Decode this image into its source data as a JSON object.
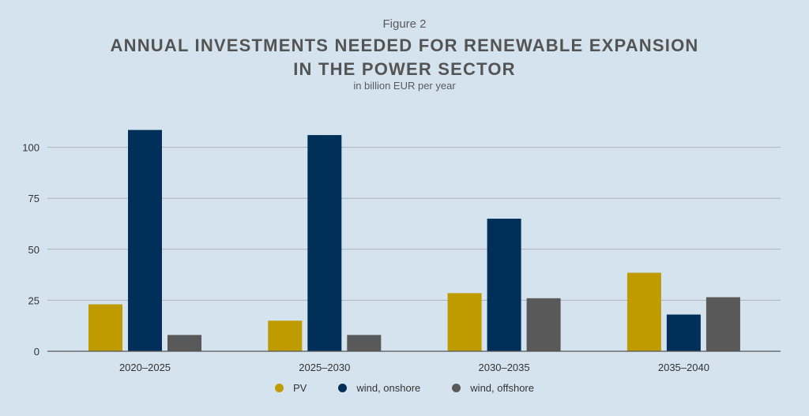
{
  "figure_label": "Figure 2",
  "title_line1": "ANNUAL INVESTMENTS NEEDED FOR RENEWABLE EXPANSION",
  "title_line2": "IN THE POWER SECTOR",
  "subtitle": "in billion EUR per year",
  "colors": {
    "PV": "#bf9b00",
    "wind, onshore": "#00305a",
    "wind, offshore": "#595959",
    "grid": "#a9b3bb",
    "axis": "#555555"
  },
  "chart_data": {
    "type": "bar",
    "title": "ANNUAL INVESTMENTS NEEDED FOR RENEWABLE EXPANSION IN THE POWER SECTOR",
    "subtitle": "in billion EUR per year",
    "xlabel": "",
    "ylabel": "",
    "ylim": [
      0,
      110
    ],
    "yticks": [
      0,
      25,
      50,
      75,
      100
    ],
    "grid": true,
    "legend_position": "bottom-center",
    "categories": [
      "2020–2025",
      "2025–2030",
      "2030–2035",
      "2035–2040"
    ],
    "series": [
      {
        "name": "PV",
        "values": [
          23,
          15,
          28.5,
          38.5
        ]
      },
      {
        "name": "wind, onshore",
        "values": [
          108.5,
          106,
          65,
          18
        ]
      },
      {
        "name": "wind, offshore",
        "values": [
          8,
          8,
          26,
          26.5
        ]
      }
    ]
  }
}
